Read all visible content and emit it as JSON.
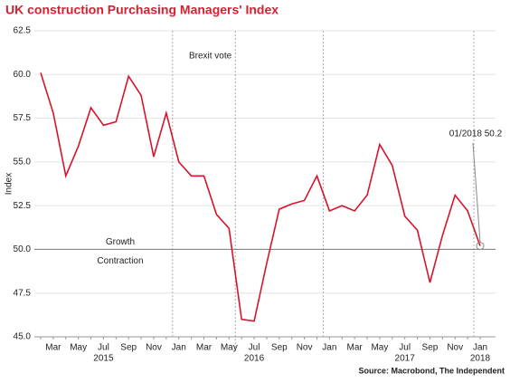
{
  "chart_data": {
    "type": "line",
    "title": "UK construction Purchasing Managers' Index",
    "y_label": "Index",
    "source": "Source: Macrobond, The Independent",
    "categories": [
      null,
      "Mar",
      null,
      "May",
      null,
      "Jul",
      null,
      "Sep",
      null,
      "Nov",
      null,
      "Jan",
      null,
      "Mar",
      null,
      "May",
      null,
      "Jul",
      null,
      "Sep",
      null,
      "Nov",
      null,
      "Jan",
      null,
      "Mar",
      null,
      "May",
      null,
      "Jul",
      null,
      "Sep",
      null,
      "Nov",
      null,
      "Jan"
    ],
    "years": [
      null,
      null,
      null,
      null,
      null,
      "2015",
      null,
      null,
      null,
      null,
      null,
      null,
      null,
      null,
      null,
      null,
      null,
      "2016",
      null,
      null,
      null,
      null,
      null,
      null,
      null,
      null,
      null,
      null,
      null,
      "2017",
      null,
      null,
      null,
      null,
      null,
      "2018"
    ],
    "series": [
      {
        "name": "Index",
        "color": "#d7132b",
        "values": [
          60.1,
          57.8,
          54.2,
          55.9,
          58.1,
          57.1,
          57.3,
          59.9,
          58.8,
          55.3,
          57.8,
          55.0,
          54.2,
          54.2,
          52.0,
          51.2,
          46.0,
          45.9,
          49.2,
          52.3,
          52.6,
          52.8,
          54.2,
          52.2,
          52.5,
          52.2,
          53.1,
          56.0,
          54.8,
          51.9,
          51.1,
          48.1,
          50.8,
          53.1,
          52.2,
          50.2
        ]
      }
    ],
    "ylim": [
      45,
      62.5
    ],
    "yticks": [
      {
        "value": 45,
        "label": "45.0"
      },
      47.5,
      {
        "value": 50,
        "label": "50.0"
      },
      52.5,
      {
        "value": 55,
        "label": "55.0"
      },
      57.5,
      {
        "value": 60,
        "label": "60.0"
      },
      62.5
    ],
    "grid": true,
    "reference_line": {
      "value": 50,
      "above_label": "Growth",
      "below_label": "Contraction"
    },
    "event_annotation": "Brexit vote",
    "point_annotation": "01/2018 50.2"
  }
}
